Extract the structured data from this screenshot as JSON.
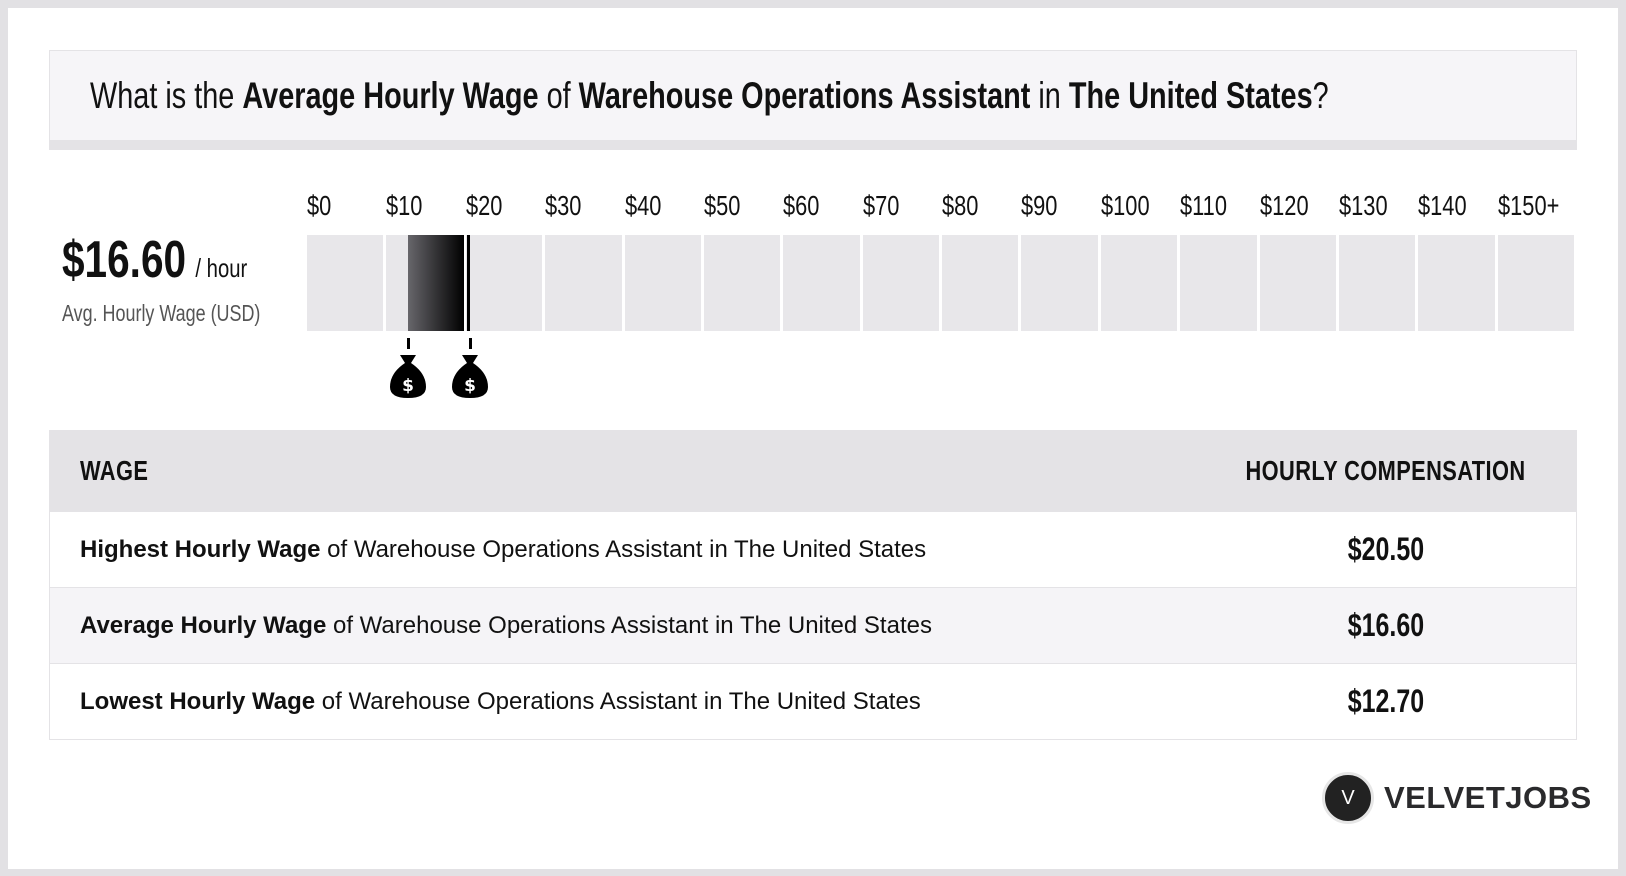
{
  "title": {
    "p1": "What is the ",
    "b1": "Average Hourly Wage",
    "p2": " of ",
    "b2": "Warehouse Operations Assistant",
    "p3": " in ",
    "b3": "The United States",
    "p4": "?"
  },
  "summary": {
    "value": "$16.60",
    "unit": "/ hour",
    "label": "Avg. Hourly Wage (USD)"
  },
  "scale": {
    "labels": [
      "$0",
      "$10",
      "$20",
      "$30",
      "$40",
      "$50",
      "$60",
      "$70",
      "$80",
      "$90",
      "$100",
      "$110",
      "$120",
      "$130",
      "$140",
      "$150+"
    ],
    "low": 12.7,
    "high": 20.5,
    "average": 16.6,
    "max": 160
  },
  "table": {
    "headers": {
      "wage": "WAGE",
      "comp": "HOURLY COMPENSATION"
    },
    "rows": [
      {
        "bold": "Highest Hourly Wage",
        "rest": " of Warehouse Operations Assistant in The United States",
        "value": "$20.50"
      },
      {
        "bold": "Average Hourly Wage",
        "rest": " of Warehouse Operations Assistant in The United States",
        "value": "$16.60"
      },
      {
        "bold": "Lowest Hourly Wage",
        "rest": " of Warehouse Operations Assistant in The United States",
        "value": "$12.70"
      }
    ]
  },
  "logo": {
    "mark": "V",
    "text": "VELVETJOBS"
  },
  "icons": {
    "marker": "money-bag-icon"
  }
}
